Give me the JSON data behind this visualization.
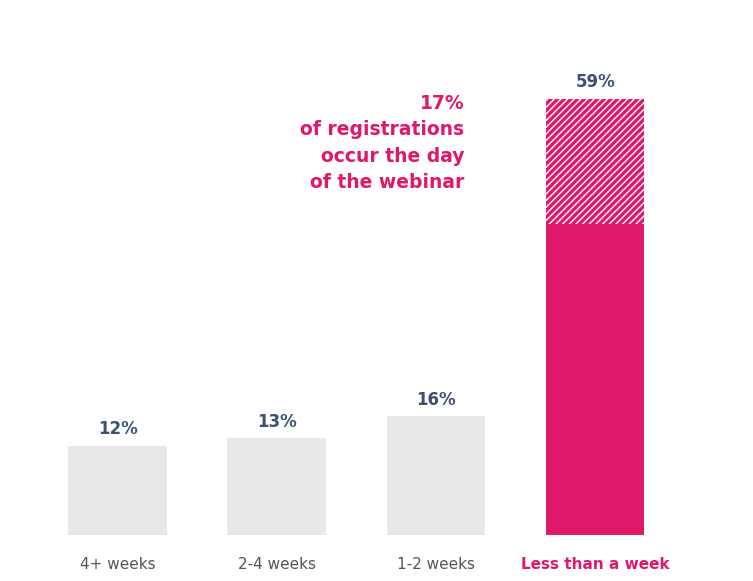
{
  "categories": [
    "4+ weeks",
    "2-4 weeks",
    "1-2 weeks",
    "Less than a week"
  ],
  "values": [
    12,
    13,
    16,
    59
  ],
  "solid_values": [
    12,
    13,
    16,
    42
  ],
  "hatch_values": [
    0,
    0,
    0,
    17
  ],
  "labels": [
    "12%",
    "13%",
    "16%",
    "59%"
  ],
  "bar_color_gray": "#e8e8e8",
  "bar_color_pink": "#e0186a",
  "label_color": "#3d5175",
  "annotation_text": "17%\nof registrations\noccur the day\nof the webinar",
  "annotation_color": "#e0186a",
  "background_color": "#ffffff",
  "ylim": [
    0,
    70
  ],
  "bar_width": 0.62
}
